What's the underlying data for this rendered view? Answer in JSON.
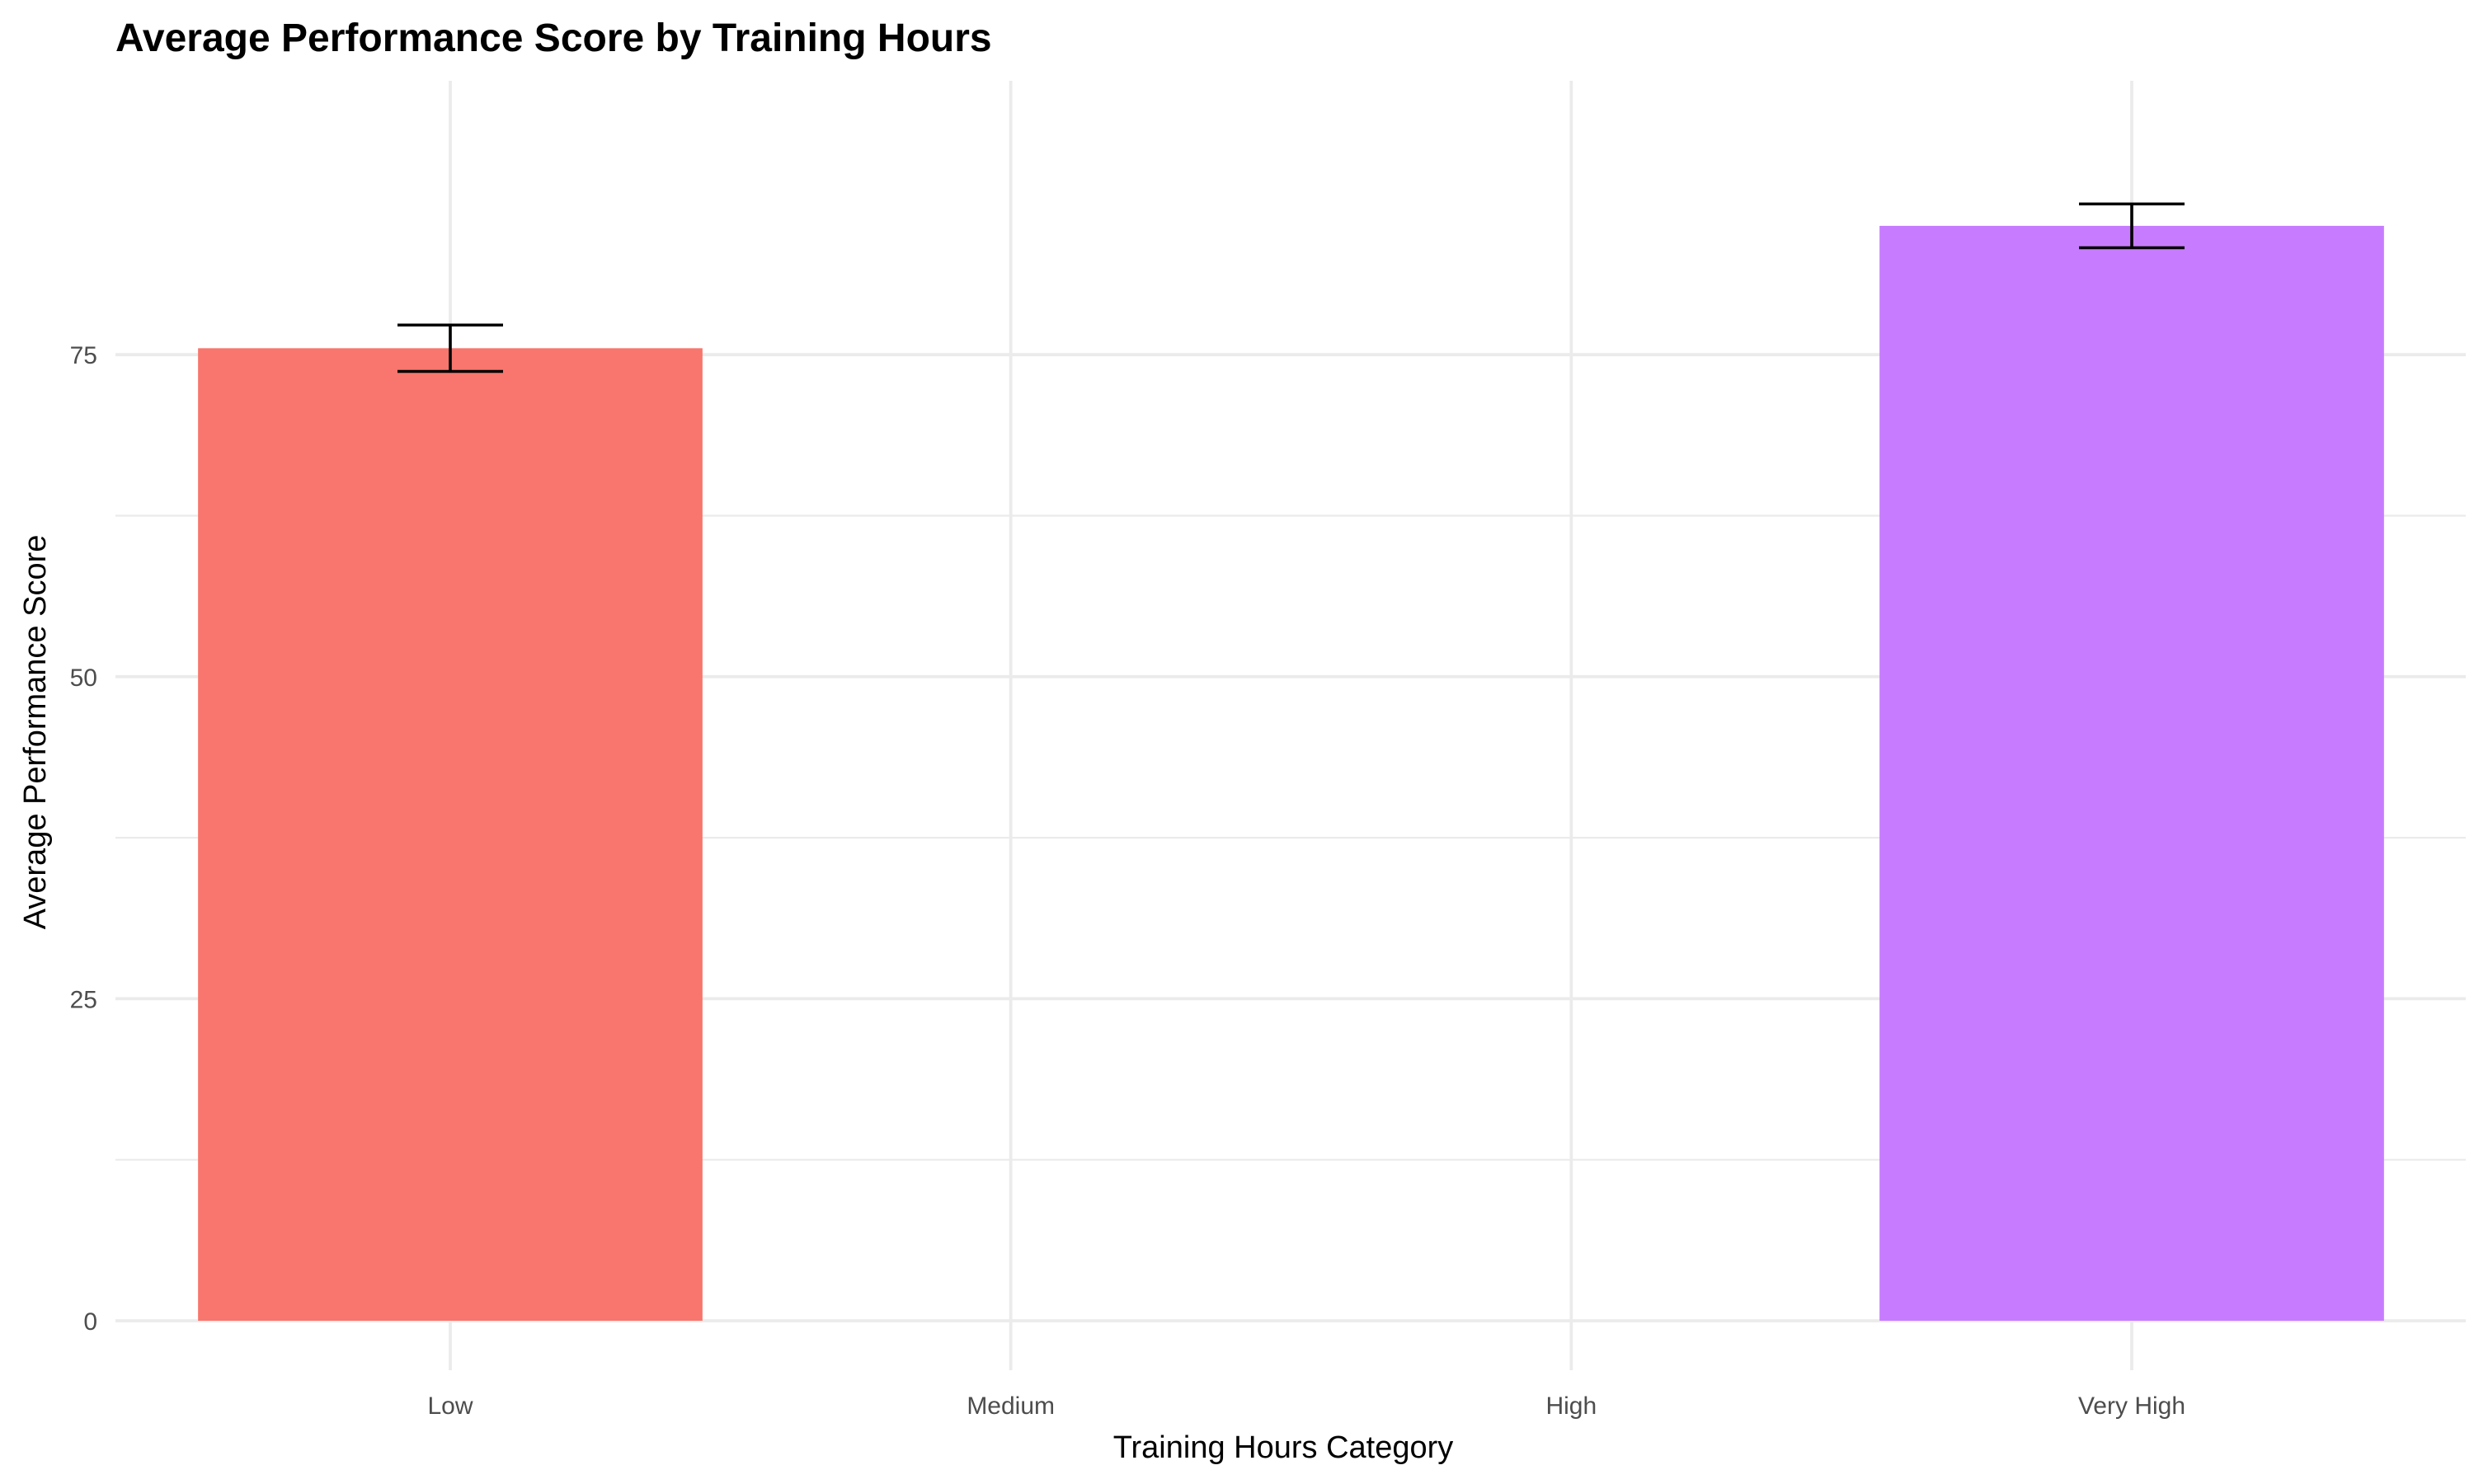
{
  "chart_data": {
    "type": "bar",
    "title": "Average Performance Score by Training Hours",
    "xlabel": "Training Hours Category",
    "ylabel": "Average Performance Score",
    "categories": [
      "Low",
      "Medium",
      "High",
      "Very High"
    ],
    "values": [
      75.5,
      null,
      null,
      85.0
    ],
    "error_bars": [
      {
        "low": 73.7,
        "high": 77.3
      },
      null,
      null,
      {
        "low": 83.3,
        "high": 86.7
      }
    ],
    "colors": [
      "#F8766D",
      null,
      null,
      "#C77CFF"
    ],
    "ylim": [
      0,
      87.3
    ],
    "yticks": [
      0,
      25,
      50,
      75
    ],
    "ytick_labels": [
      "0",
      "25",
      "50",
      "75"
    ],
    "grid": true,
    "legend": "none"
  }
}
